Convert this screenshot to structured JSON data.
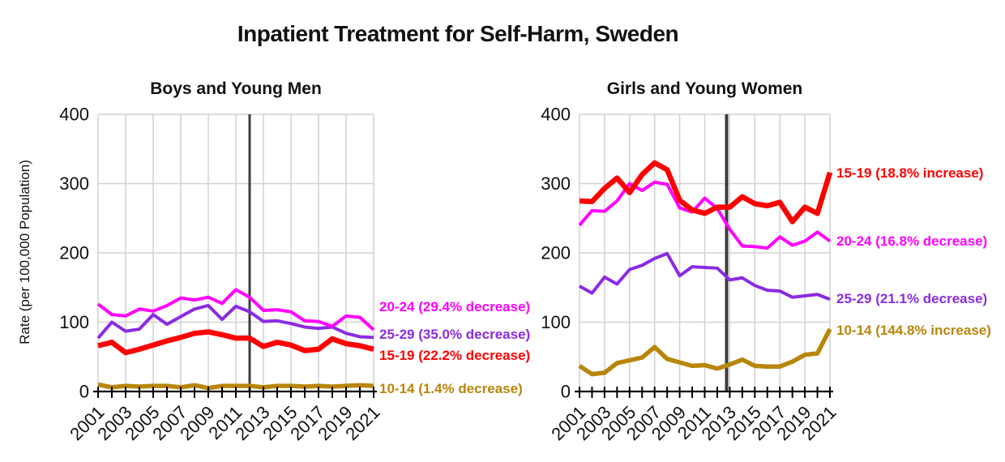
{
  "title": "Inpatient Treatment for Self-Harm, Sweden",
  "ylabel": "Rate (per 100,000 Population)",
  "colors": {
    "red": "#ff0000",
    "magenta": "#ff00ff",
    "purple": "#8b2be2",
    "gold": "#b8860b",
    "grid": "#d2d2d2",
    "axis": "#000000",
    "vline": "#3c3c3c"
  },
  "chart_data": [
    {
      "type": "line",
      "panel": "boys",
      "title": "Boys and Young Men",
      "x": [
        2001,
        2002,
        2003,
        2004,
        2005,
        2006,
        2007,
        2008,
        2009,
        2010,
        2011,
        2012,
        2013,
        2014,
        2015,
        2016,
        2017,
        2018,
        2019,
        2020,
        2021
      ],
      "x_tick_labels": [
        "2001",
        "2003",
        "2005",
        "2007",
        "2009",
        "2011",
        "2013",
        "2015",
        "2017",
        "2019",
        "2021"
      ],
      "ylim": [
        0,
        400
      ],
      "y_ticks": [
        0,
        100,
        200,
        300,
        400
      ],
      "grid": true,
      "vline_year": 2012,
      "series": [
        {
          "name": "15-19",
          "label": "15-19 (22.2% decrease)",
          "color_key": "red",
          "values": [
            66,
            71,
            56,
            61,
            67,
            73,
            78,
            84,
            86,
            82,
            77,
            77,
            65,
            71,
            67,
            59,
            61,
            76,
            69,
            66,
            61
          ]
        },
        {
          "name": "20-24",
          "label": "20-24 (29.4% decrease)",
          "color_key": "magenta",
          "values": [
            126,
            111,
            109,
            119,
            116,
            124,
            135,
            132,
            136,
            127,
            147,
            136,
            117,
            118,
            115,
            102,
            101,
            94,
            109,
            107,
            89
          ]
        },
        {
          "name": "25-29",
          "label": "25-29 (35.0% decrease)",
          "color_key": "purple",
          "values": [
            77,
            100,
            87,
            90,
            111,
            97,
            108,
            119,
            124,
            104,
            123,
            115,
            101,
            102,
            98,
            93,
            91,
            93,
            84,
            79,
            78
          ]
        },
        {
          "name": "10-14",
          "label": "10-14 (1.4% decrease)",
          "color_key": "gold",
          "values": [
            10,
            6,
            8,
            7,
            8,
            8,
            6,
            9,
            5,
            8,
            8,
            8,
            6,
            8,
            8,
            7,
            8,
            7,
            8,
            9,
            8
          ]
        }
      ]
    },
    {
      "type": "line",
      "panel": "girls",
      "title": "Girls and Young Women",
      "x": [
        2001,
        2002,
        2003,
        2004,
        2005,
        2006,
        2007,
        2008,
        2009,
        2010,
        2011,
        2012,
        2013,
        2014,
        2015,
        2016,
        2017,
        2018,
        2019,
        2020,
        2021
      ],
      "x_tick_labels": [
        "2001",
        "2003",
        "2005",
        "2007",
        "2009",
        "2011",
        "2013",
        "2015",
        "2017",
        "2019",
        "2021"
      ],
      "ylim": [
        0,
        400
      ],
      "y_ticks": [
        0,
        100,
        200,
        300,
        400
      ],
      "grid": true,
      "vline_year": 2012.75,
      "series": [
        {
          "name": "15-19",
          "label": "15-19 (18.8% increase)",
          "color_key": "red",
          "values": [
            275,
            274,
            293,
            308,
            287,
            313,
            330,
            320,
            276,
            262,
            257,
            266,
            266,
            281,
            271,
            268,
            273,
            245,
            266,
            257,
            316
          ]
        },
        {
          "name": "20-24",
          "label": "20-24 (16.8% decrease)",
          "color_key": "magenta",
          "values": [
            240,
            261,
            260,
            275,
            300,
            290,
            302,
            299,
            265,
            259,
            279,
            264,
            234,
            210,
            209,
            207,
            223,
            211,
            217,
            230,
            217
          ]
        },
        {
          "name": "25-29",
          "label": "25-29 (21.1% decrease)",
          "color_key": "purple",
          "values": [
            152,
            142,
            165,
            155,
            176,
            182,
            192,
            199,
            167,
            180,
            179,
            178,
            161,
            164,
            153,
            146,
            145,
            136,
            138,
            140,
            133
          ]
        },
        {
          "name": "10-14",
          "label": "10-14 (144.8% increase)",
          "color_key": "gold",
          "values": [
            37,
            25,
            27,
            41,
            45,
            49,
            64,
            47,
            42,
            37,
            38,
            33,
            39,
            46,
            37,
            36,
            36,
            43,
            53,
            55,
            90
          ]
        }
      ]
    }
  ]
}
